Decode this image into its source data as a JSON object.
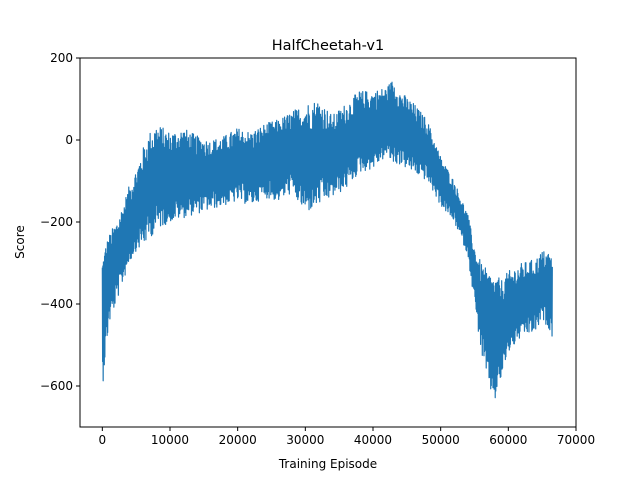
{
  "chart_data": {
    "type": "line",
    "title": "HalfCheetah-v1",
    "xlabel": "Training Episode",
    "ylabel": "Score",
    "xlim": [
      -3300,
      70000
    ],
    "ylim": [
      -700,
      200
    ],
    "xticks": [
      0,
      10000,
      20000,
      30000,
      40000,
      50000,
      60000,
      70000
    ],
    "yticks": [
      -600,
      -400,
      -200,
      0,
      200
    ],
    "xtick_labels": [
      "0",
      "10000",
      "20000",
      "30000",
      "40000",
      "50000",
      "60000",
      "70000"
    ],
    "ytick_labels": [
      "−600",
      "−400",
      "−200",
      "0",
      "200"
    ],
    "series": [
      {
        "name": "score",
        "color": "#1f77b4",
        "envelope": {
          "x": [
            0,
            500,
            1000,
            2000,
            3000,
            4000,
            5000,
            6000,
            7000,
            8000,
            9000,
            10000,
            12000,
            14000,
            16000,
            18000,
            20000,
            22000,
            24000,
            26000,
            28000,
            30000,
            32000,
            34000,
            36000,
            38000,
            40000,
            42000,
            43000,
            44000,
            46000,
            48000,
            50000,
            52000,
            54000,
            55000,
            56000,
            57000,
            58000,
            59000,
            60000,
            62000,
            64000,
            65000,
            66000,
            66500
          ],
          "low": [
            -610,
            -520,
            -450,
            -400,
            -350,
            -300,
            -270,
            -260,
            -240,
            -220,
            -210,
            -200,
            -190,
            -180,
            -170,
            -160,
            -150,
            -160,
            -140,
            -150,
            -130,
            -180,
            -160,
            -140,
            -120,
            -80,
            -70,
            -40,
            -60,
            -60,
            -80,
            -100,
            -160,
            -200,
            -280,
            -400,
            -520,
            -600,
            -640,
            -580,
            -520,
            -480,
            -470,
            -440,
            -460,
            -480
          ],
          "high": [
            -280,
            -250,
            -230,
            -200,
            -160,
            -110,
            -70,
            -20,
            20,
            40,
            30,
            20,
            30,
            10,
            0,
            10,
            30,
            20,
            40,
            50,
            70,
            90,
            100,
            60,
            90,
            120,
            120,
            130,
            150,
            120,
            90,
            50,
            -40,
            -100,
            -180,
            -260,
            -300,
            -320,
            -330,
            -340,
            -320,
            -300,
            -290,
            -270,
            -270,
            -290
          ]
        }
      }
    ]
  }
}
